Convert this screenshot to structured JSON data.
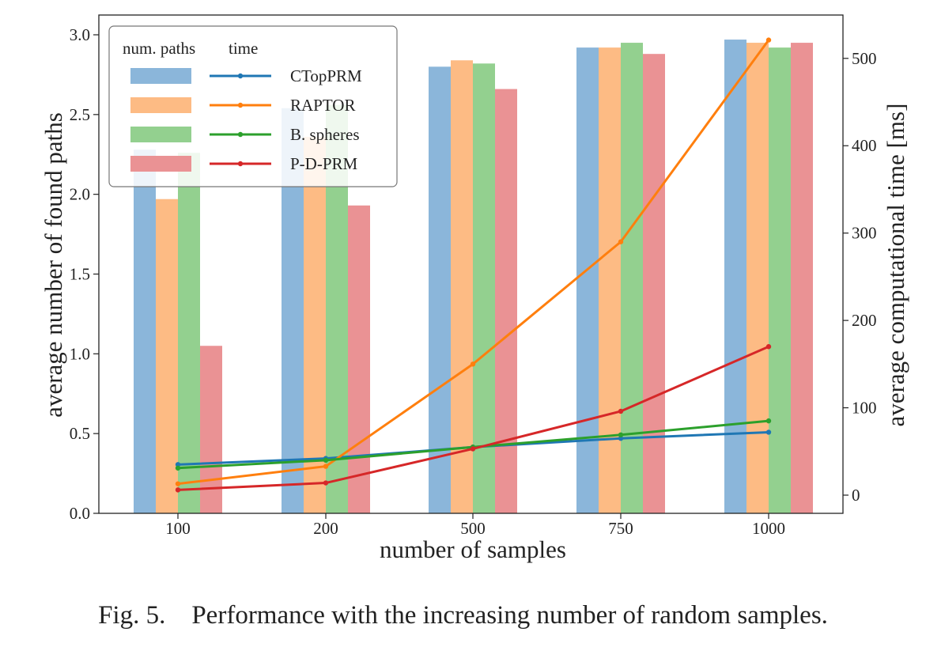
{
  "caption": "Fig. 5.    Performance with the increasing number of random samples.",
  "chart_data": {
    "type": "bar",
    "xlabel": "number of samples",
    "ylabel": "average number of found paths",
    "y2label": "average computational time [ms]",
    "categories": [
      "100",
      "200",
      "500",
      "750",
      "1000"
    ],
    "ylim": [
      0,
      3.0
    ],
    "yticks": [
      "0.0",
      "0.5",
      "1.0",
      "1.5",
      "2.0",
      "2.5",
      "3.0"
    ],
    "y2lim": [
      0,
      520
    ],
    "y2ticks": [
      "0",
      "100",
      "200",
      "300",
      "400",
      "500"
    ],
    "legend_placement": "top-left",
    "legend_headers": [
      "num. paths",
      "time"
    ],
    "series": [
      {
        "name": "CTopPRM",
        "bar_color": "#8bb6da",
        "line_color": "#1f77b4",
        "paths": [
          2.28,
          2.54,
          2.8,
          2.92,
          2.97
        ],
        "time": [
          35,
          42,
          55,
          65,
          72
        ]
      },
      {
        "name": "RAPTOR",
        "bar_color": "#fdbb84",
        "line_color": "#ff7f0e",
        "paths": [
          1.97,
          2.36,
          2.84,
          2.92,
          2.95
        ],
        "time": [
          13,
          33,
          150,
          290,
          521
        ]
      },
      {
        "name": "B. spheres",
        "bar_color": "#93d08f",
        "line_color": "#2ca02c",
        "paths": [
          2.26,
          2.56,
          2.82,
          2.95,
          2.92
        ],
        "time": [
          31,
          40,
          55,
          69,
          85
        ]
      },
      {
        "name": "P-D-PRM",
        "bar_color": "#ea9294",
        "line_color": "#d62728",
        "paths": [
          1.05,
          1.93,
          2.66,
          2.88,
          2.95
        ],
        "time": [
          6,
          14,
          53,
          96,
          170
        ]
      }
    ]
  }
}
